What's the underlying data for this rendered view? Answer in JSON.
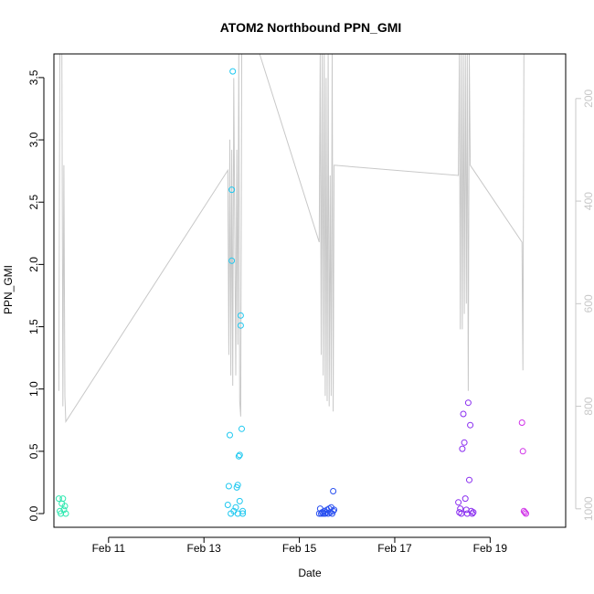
{
  "chart_data": {
    "type": "scatter",
    "title": "ATOM2 Northbound PPN_GMI",
    "xlabel": "Date",
    "ylabel": "PPN_GMI",
    "xlim": [
      "2018-02-09T20:30",
      "2018-02-20T14:00"
    ],
    "ylim": [
      -0.11,
      3.69
    ],
    "x_ticks": [
      {
        "label": "Feb 11",
        "date": "2018-02-11T00:00"
      },
      {
        "label": "Feb 13",
        "date": "2018-02-13T00:00"
      },
      {
        "label": "Feb 15",
        "date": "2018-02-15T00:00"
      },
      {
        "label": "Feb 17",
        "date": "2018-02-17T00:00"
      },
      {
        "label": "Feb 19",
        "date": "2018-02-19T00:00"
      }
    ],
    "y_ticks": [
      "0.0",
      "0.5",
      "1.0",
      "1.5",
      "2.0",
      "2.5",
      "3.0",
      "3.5"
    ],
    "y2": {
      "ticks": [
        "200",
        "400",
        "600",
        "800",
        "1000"
      ],
      "reversed": true,
      "range": [
        113,
        1036
      ],
      "color": "#c8c8c8"
    },
    "grid": false,
    "legend": "none",
    "point_colors": "cyan-to-magenta gradient by time",
    "points": [
      {
        "x": "2018-02-09T23:00",
        "y": 0.12,
        "c": "#2ee8b0"
      },
      {
        "x": "2018-02-09T23:30",
        "y": 0.02,
        "c": "#2ee8b0"
      },
      {
        "x": "2018-02-10T00:00",
        "y": 0.0,
        "c": "#2ee8b0"
      },
      {
        "x": "2018-02-10T00:30",
        "y": 0.08,
        "c": "#2ee8b0"
      },
      {
        "x": "2018-02-10T01:00",
        "y": 0.12,
        "c": "#2ee8b0"
      },
      {
        "x": "2018-02-10T01:30",
        "y": 0.03,
        "c": "#2ee8b0"
      },
      {
        "x": "2018-02-10T02:00",
        "y": 0.06,
        "c": "#2ee8b0"
      },
      {
        "x": "2018-02-10T02:30",
        "y": 0.0,
        "c": "#2ee8b0"
      },
      {
        "x": "2018-02-13T12:00",
        "y": 0.07,
        "c": "#1ec8f0"
      },
      {
        "x": "2018-02-13T12:30",
        "y": 0.22,
        "c": "#1ec8f0"
      },
      {
        "x": "2018-02-13T13:00",
        "y": 0.63,
        "c": "#1ec8f0"
      },
      {
        "x": "2018-02-13T13:30",
        "y": 0.0,
        "c": "#1ec8f0"
      },
      {
        "x": "2018-02-13T14:00",
        "y": 2.03,
        "c": "#1ec8f0"
      },
      {
        "x": "2018-02-13T14:00",
        "y": 2.6,
        "c": "#1ec8f0"
      },
      {
        "x": "2018-02-13T14:30",
        "y": 3.55,
        "c": "#1ec8f0"
      },
      {
        "x": "2018-02-13T15:00",
        "y": 0.02,
        "c": "#1ec8f0"
      },
      {
        "x": "2018-02-13T16:00",
        "y": 0.05,
        "c": "#1ec8f0"
      },
      {
        "x": "2018-02-13T16:30",
        "y": 0.21,
        "c": "#1ec8f0"
      },
      {
        "x": "2018-02-13T17:00",
        "y": 0.23,
        "c": "#1ec8f0"
      },
      {
        "x": "2018-02-13T17:00",
        "y": 0.0,
        "c": "#1ec8f0"
      },
      {
        "x": "2018-02-13T17:30",
        "y": 0.46,
        "c": "#1ec8f0"
      },
      {
        "x": "2018-02-13T18:00",
        "y": 0.47,
        "c": "#1ec8f0"
      },
      {
        "x": "2018-02-13T18:00",
        "y": 0.1,
        "c": "#1ec8f0"
      },
      {
        "x": "2018-02-13T18:30",
        "y": 1.59,
        "c": "#1ec8f0"
      },
      {
        "x": "2018-02-13T18:30",
        "y": 1.51,
        "c": "#1ec8f0"
      },
      {
        "x": "2018-02-13T19:00",
        "y": 0.68,
        "c": "#1ec8f0"
      },
      {
        "x": "2018-02-13T19:30",
        "y": 0.02,
        "c": "#1ec8f0"
      },
      {
        "x": "2018-02-13T19:30",
        "y": 0.0,
        "c": "#1ec8f0"
      },
      {
        "x": "2018-02-15T10:00",
        "y": 0.0,
        "c": "#2a50f0"
      },
      {
        "x": "2018-02-15T10:30",
        "y": 0.04,
        "c": "#2a50f0"
      },
      {
        "x": "2018-02-15T11:00",
        "y": 0.0,
        "c": "#2a50f0"
      },
      {
        "x": "2018-02-15T11:30",
        "y": 0.01,
        "c": "#2a50f0"
      },
      {
        "x": "2018-02-15T12:00",
        "y": 0.0,
        "c": "#2a50f0"
      },
      {
        "x": "2018-02-15T12:30",
        "y": 0.02,
        "c": "#2a50f0"
      },
      {
        "x": "2018-02-15T13:00",
        "y": 0.0,
        "c": "#2a50f0"
      },
      {
        "x": "2018-02-15T13:30",
        "y": 0.01,
        "c": "#2a50f0"
      },
      {
        "x": "2018-02-15T14:00",
        "y": 0.03,
        "c": "#2a50f0"
      },
      {
        "x": "2018-02-15T14:30",
        "y": 0.0,
        "c": "#2a50f0"
      },
      {
        "x": "2018-02-15T15:00",
        "y": 0.04,
        "c": "#2a50f0"
      },
      {
        "x": "2018-02-15T15:30",
        "y": 0.01,
        "c": "#2a50f0"
      },
      {
        "x": "2018-02-15T16:00",
        "y": 0.05,
        "c": "#2a50f0"
      },
      {
        "x": "2018-02-15T16:30",
        "y": 0.0,
        "c": "#2a50f0"
      },
      {
        "x": "2018-02-15T17:00",
        "y": 0.18,
        "c": "#2a50f0"
      },
      {
        "x": "2018-02-15T17:00",
        "y": 0.02,
        "c": "#2a50f0"
      },
      {
        "x": "2018-02-15T17:30",
        "y": 0.03,
        "c": "#2a50f0"
      },
      {
        "x": "2018-02-18T08:00",
        "y": 0.09,
        "c": "#8a2ef0"
      },
      {
        "x": "2018-02-18T08:30",
        "y": 0.01,
        "c": "#8a2ef0"
      },
      {
        "x": "2018-02-18T09:00",
        "y": 0.04,
        "c": "#8a2ef0"
      },
      {
        "x": "2018-02-18T09:30",
        "y": 0.0,
        "c": "#8a2ef0"
      },
      {
        "x": "2018-02-18T10:00",
        "y": 0.52,
        "c": "#8a2ef0"
      },
      {
        "x": "2018-02-18T10:30",
        "y": 0.8,
        "c": "#8a2ef0"
      },
      {
        "x": "2018-02-18T11:00",
        "y": 0.57,
        "c": "#8a2ef0"
      },
      {
        "x": "2018-02-18T11:30",
        "y": 0.12,
        "c": "#8a2ef0"
      },
      {
        "x": "2018-02-18T12:00",
        "y": 0.03,
        "c": "#8a2ef0"
      },
      {
        "x": "2018-02-18T12:30",
        "y": 0.0,
        "c": "#8a2ef0"
      },
      {
        "x": "2018-02-18T13:00",
        "y": 0.89,
        "c": "#8a2ef0"
      },
      {
        "x": "2018-02-18T13:30",
        "y": 0.27,
        "c": "#8a2ef0"
      },
      {
        "x": "2018-02-18T14:00",
        "y": 0.71,
        "c": "#8a2ef0"
      },
      {
        "x": "2018-02-18T14:30",
        "y": 0.02,
        "c": "#8a2ef0"
      },
      {
        "x": "2018-02-18T15:00",
        "y": 0.0,
        "c": "#8a2ef0"
      },
      {
        "x": "2018-02-18T15:30",
        "y": 0.01,
        "c": "#8a2ef0"
      },
      {
        "x": "2018-02-19T16:00",
        "y": 0.73,
        "c": "#d030e8"
      },
      {
        "x": "2018-02-19T16:30",
        "y": 0.5,
        "c": "#d030e8"
      },
      {
        "x": "2018-02-19T17:00",
        "y": 0.02,
        "c": "#d030e8"
      },
      {
        "x": "2018-02-19T17:30",
        "y": 0.01,
        "c": "#d030e8"
      },
      {
        "x": "2018-02-19T18:00",
        "y": 0.0,
        "c": "#d030e8"
      }
    ],
    "line_series": {
      "axis": "y2",
      "color": "#c8c8c8",
      "points": [
        [
          "2018-02-09T23:00",
          770
        ],
        [
          "2018-02-09T23:30",
          113
        ],
        [
          "2018-02-10T00:30",
          113
        ],
        [
          "2018-02-10T01:00",
          800
        ],
        [
          "2018-02-10T01:30",
          330
        ],
        [
          "2018-02-10T02:00",
          780
        ],
        [
          "2018-02-10T02:30",
          830
        ],
        [
          "2018-02-13T12:00",
          340
        ],
        [
          "2018-02-13T12:30",
          700
        ],
        [
          "2018-02-13T13:00",
          280
        ],
        [
          "2018-02-13T13:30",
          740
        ],
        [
          "2018-02-13T14:00",
          300
        ],
        [
          "2018-02-13T14:30",
          760
        ],
        [
          "2018-02-13T15:00",
          160
        ],
        [
          "2018-02-13T16:00",
          740
        ],
        [
          "2018-02-13T16:30",
          300
        ],
        [
          "2018-02-13T17:00",
          680
        ],
        [
          "2018-02-13T17:30",
          113
        ],
        [
          "2018-02-13T18:00",
          790
        ],
        [
          "2018-02-13T18:30",
          820
        ],
        [
          "2018-02-13T19:00",
          113
        ],
        [
          "2018-02-13T19:30",
          113
        ],
        [
          "2018-02-14T04:00",
          113
        ],
        [
          "2018-02-15T10:00",
          480
        ],
        [
          "2018-02-15T10:30",
          113
        ],
        [
          "2018-02-15T11:00",
          700
        ],
        [
          "2018-02-15T11:30",
          113
        ],
        [
          "2018-02-15T12:00",
          740
        ],
        [
          "2018-02-15T12:30",
          113
        ],
        [
          "2018-02-15T13:00",
          780
        ],
        [
          "2018-02-15T13:30",
          160
        ],
        [
          "2018-02-15T14:00",
          790
        ],
        [
          "2018-02-15T14:30",
          113
        ],
        [
          "2018-02-15T15:00",
          800
        ],
        [
          "2018-02-15T15:30",
          350
        ],
        [
          "2018-02-15T16:00",
          780
        ],
        [
          "2018-02-15T16:30",
          113
        ],
        [
          "2018-02-15T17:00",
          810
        ],
        [
          "2018-02-15T17:30",
          330
        ],
        [
          "2018-02-18T08:00",
          350
        ],
        [
          "2018-02-18T08:30",
          113
        ],
        [
          "2018-02-18T09:00",
          650
        ],
        [
          "2018-02-18T09:30",
          113
        ],
        [
          "2018-02-18T10:00",
          650
        ],
        [
          "2018-02-18T10:30",
          113
        ],
        [
          "2018-02-18T11:00",
          620
        ],
        [
          "2018-02-18T11:30",
          113
        ],
        [
          "2018-02-18T12:00",
          600
        ],
        [
          "2018-02-18T12:30",
          113
        ],
        [
          "2018-02-18T13:00",
          770
        ],
        [
          "2018-02-18T13:30",
          113
        ],
        [
          "2018-02-18T14:00",
          330
        ],
        [
          "2018-02-19T16:00",
          480
        ],
        [
          "2018-02-19T16:30",
          730
        ],
        [
          "2018-02-19T17:00",
          113
        ]
      ]
    }
  }
}
